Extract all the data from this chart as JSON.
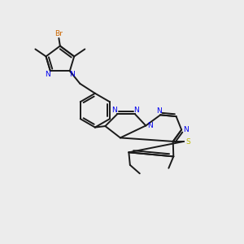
{
  "bg_color": "#ececec",
  "bond_color": "#1a1a1a",
  "bond_width": 1.4,
  "N_color": "#0000ee",
  "S_color": "#bbbb00",
  "Br_color": "#cc6600",
  "figsize": [
    3.0,
    3.0
  ],
  "dpi": 100,
  "xlim": [
    0,
    10
  ],
  "ylim": [
    0,
    10
  ]
}
